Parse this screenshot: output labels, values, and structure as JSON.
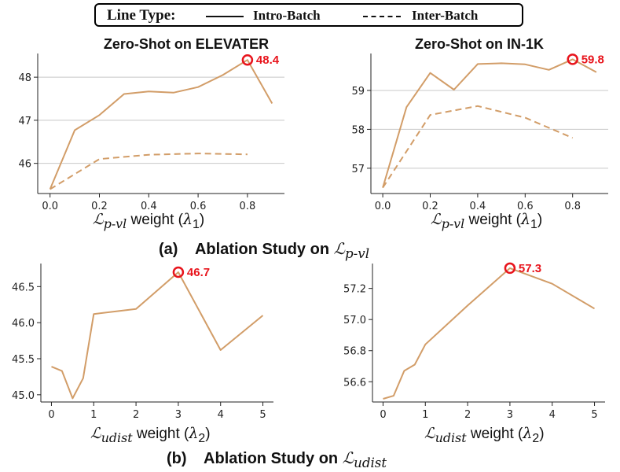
{
  "legend": {
    "title": "Line Type:",
    "items": [
      {
        "label": "Intro-Batch",
        "style": "solid"
      },
      {
        "label": "Inter-Batch",
        "style": "dashed"
      }
    ]
  },
  "captions": {
    "a": {
      "tag": "(a)",
      "text": "Ablation Study on",
      "sym": "ℒ",
      "sub": "p-vl"
    },
    "b": {
      "tag": "(b)",
      "text": "Ablation Study on",
      "sym": "ℒ",
      "sub": "udist"
    }
  },
  "colors": {
    "line": "#d29d68",
    "highlight": "#e8141c",
    "grid": "#c8c8c8",
    "axis": "#222222"
  },
  "chart_data": [
    {
      "type": "line",
      "title": "Zero-Shot on ELEVATER",
      "xlabel": {
        "sym": "ℒ",
        "sub": "p-vl",
        "word": "weight",
        "param": "λ",
        "param_sub": "1"
      },
      "xlim": [
        -0.05,
        0.95
      ],
      "ylim": [
        45.3,
        48.55
      ],
      "xticks": [
        0.0,
        0.2,
        0.4,
        0.6,
        0.8
      ],
      "xtick_labels": [
        "0.0",
        "0.2",
        "0.4",
        "0.6",
        "0.8"
      ],
      "yticks": [
        46,
        47,
        48
      ],
      "ytick_labels": [
        "46",
        "47",
        "48"
      ],
      "grid": "horizontal",
      "series": [
        {
          "name": "Intro-Batch",
          "style": "solid",
          "x": [
            0.0,
            0.1,
            0.2,
            0.3,
            0.4,
            0.5,
            0.6,
            0.7,
            0.8,
            0.9
          ],
          "y": [
            45.4,
            46.77,
            47.12,
            47.61,
            47.67,
            47.64,
            47.77,
            48.05,
            48.4,
            47.39
          ]
        },
        {
          "name": "Inter-Batch",
          "style": "dashed",
          "x": [
            0.0,
            0.2,
            0.4,
            0.6,
            0.8
          ],
          "y": [
            45.4,
            46.1,
            46.2,
            46.23,
            46.21
          ]
        }
      ],
      "highlight": {
        "x": 0.8,
        "y": 48.4,
        "label": "48.4"
      }
    },
    {
      "type": "line",
      "title": "Zero-Shot on IN-1K",
      "xlabel": {
        "sym": "ℒ",
        "sub": "p-vl",
        "word": "weight",
        "param": "λ",
        "param_sub": "1"
      },
      "xlim": [
        -0.05,
        0.95
      ],
      "ylim": [
        56.35,
        59.95
      ],
      "xticks": [
        0.0,
        0.2,
        0.4,
        0.6,
        0.8
      ],
      "xtick_labels": [
        "0.0",
        "0.2",
        "0.4",
        "0.6",
        "0.8"
      ],
      "yticks": [
        57,
        58,
        59
      ],
      "ytick_labels": [
        "57",
        "58",
        "59"
      ],
      "grid": "horizontal",
      "series": [
        {
          "name": "Intro-Batch",
          "style": "solid",
          "x": [
            0.0,
            0.1,
            0.2,
            0.3,
            0.4,
            0.5,
            0.6,
            0.7,
            0.8,
            0.9
          ],
          "y": [
            56.5,
            58.57,
            59.45,
            59.02,
            59.68,
            59.7,
            59.67,
            59.53,
            59.8,
            59.47
          ]
        },
        {
          "name": "Inter-Batch",
          "style": "dashed",
          "x": [
            0.0,
            0.2,
            0.4,
            0.6,
            0.8
          ],
          "y": [
            56.5,
            58.37,
            58.6,
            58.3,
            57.78
          ]
        }
      ],
      "highlight": {
        "x": 0.8,
        "y": 59.8,
        "label": "59.8"
      }
    },
    {
      "type": "line",
      "title": "",
      "xlabel": {
        "sym": "ℒ",
        "sub": "udist",
        "word": "weight",
        "param": "λ",
        "param_sub": "2"
      },
      "xlim": [
        -0.25,
        5.25
      ],
      "ylim": [
        44.9,
        46.82
      ],
      "xticks": [
        0,
        1,
        2,
        3,
        4,
        5
      ],
      "xtick_labels": [
        "0",
        "1",
        "2",
        "3",
        "4",
        "5"
      ],
      "yticks": [
        45.0,
        45.5,
        46.0,
        46.5
      ],
      "ytick_labels": [
        "45.0",
        "45.5",
        "46.0",
        "46.5"
      ],
      "grid": "none",
      "series": [
        {
          "name": "Intro-Batch",
          "style": "solid",
          "x": [
            0,
            0.25,
            0.5,
            0.75,
            1,
            2,
            3,
            4,
            5
          ],
          "y": [
            45.39,
            45.33,
            44.95,
            45.23,
            46.12,
            46.19,
            46.7,
            45.62,
            46.1
          ]
        }
      ],
      "highlight": {
        "x": 3,
        "y": 46.7,
        "label": "46.7"
      }
    },
    {
      "type": "line",
      "title": "",
      "xlabel": {
        "sym": "ℒ",
        "sub": "udist",
        "word": "weight",
        "param": "λ",
        "param_sub": "2"
      },
      "xlim": [
        -0.25,
        5.25
      ],
      "ylim": [
        56.47,
        57.36
      ],
      "xticks": [
        0,
        1,
        2,
        3,
        4,
        5
      ],
      "xtick_labels": [
        "0",
        "1",
        "2",
        "3",
        "4",
        "5"
      ],
      "yticks": [
        56.6,
        56.8,
        57.0,
        57.2
      ],
      "ytick_labels": [
        "56.6",
        "56.8",
        "57.0",
        "57.2"
      ],
      "grid": "none",
      "series": [
        {
          "name": "Intro-Batch",
          "style": "solid",
          "x": [
            0,
            0.25,
            0.5,
            0.75,
            1,
            2,
            3,
            4,
            5
          ],
          "y": [
            56.49,
            56.51,
            56.67,
            56.71,
            56.84,
            57.09,
            57.33,
            57.23,
            57.07
          ]
        }
      ],
      "highlight": {
        "x": 3,
        "y": 57.33,
        "label": "57.3"
      }
    }
  ]
}
